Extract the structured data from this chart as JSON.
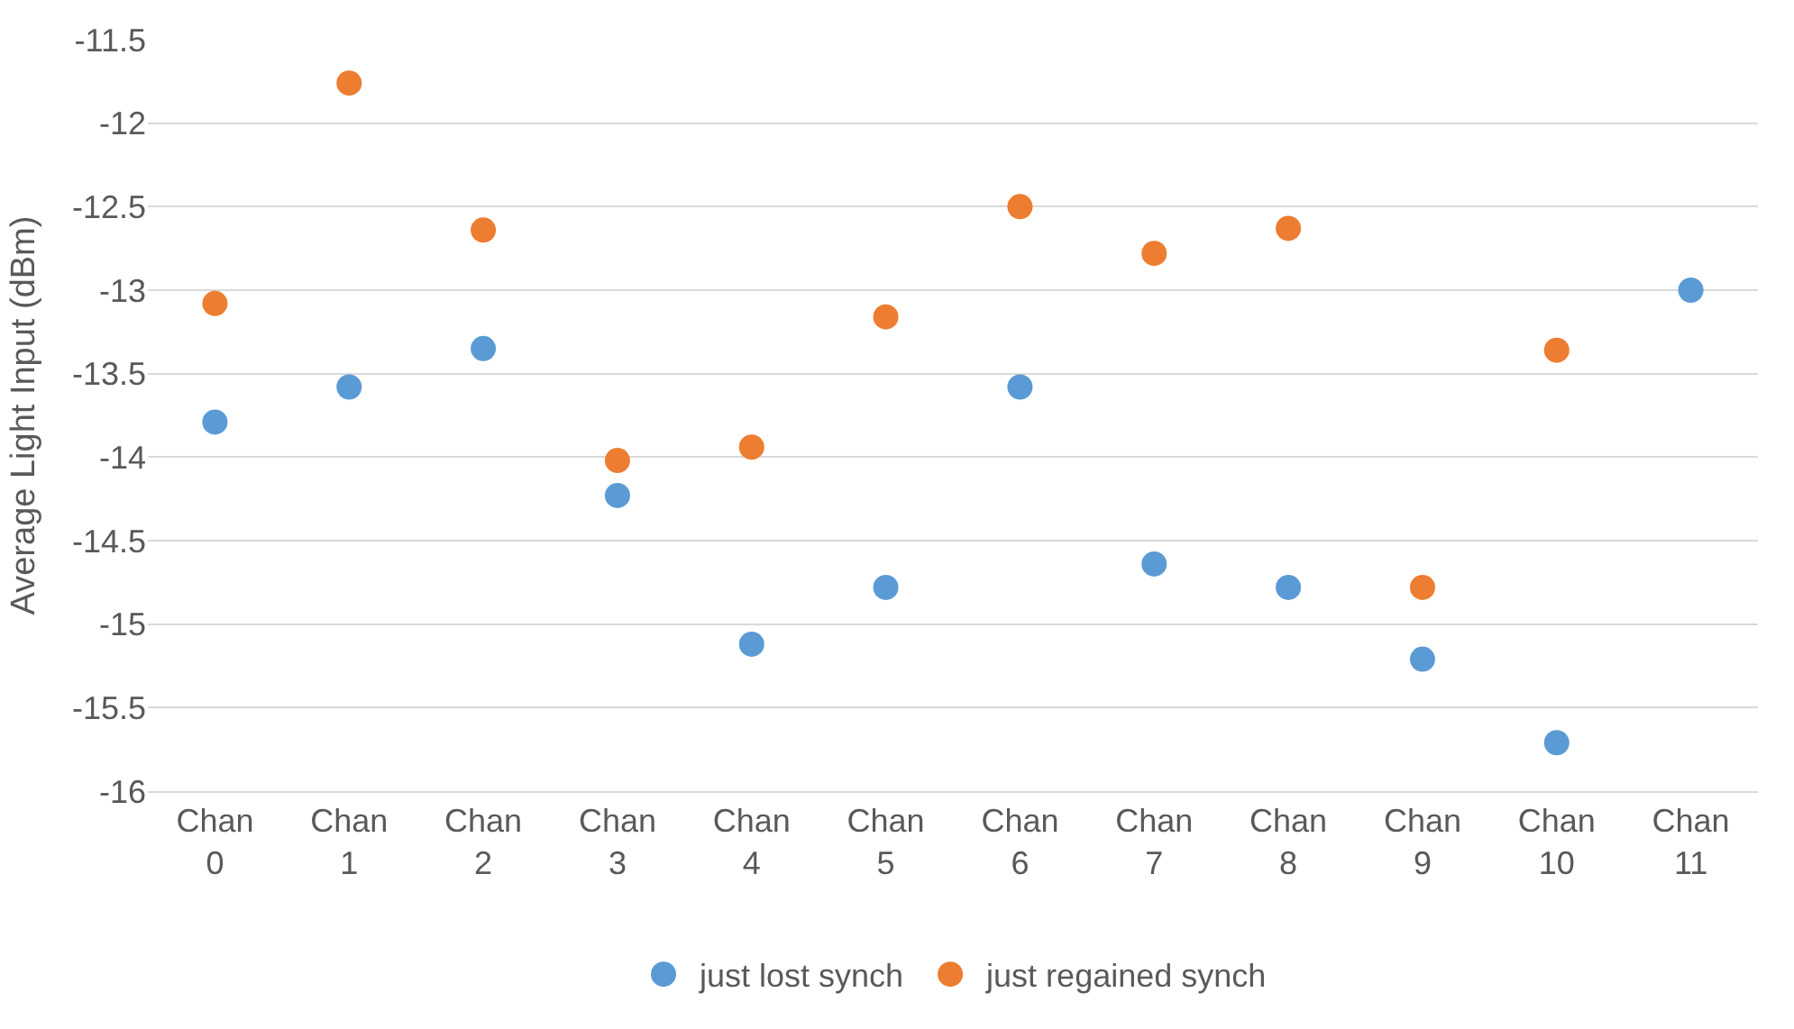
{
  "chart_data": {
    "type": "scatter",
    "ylabel": "Average Light Input (dBm)",
    "categories": [
      "Chan 0",
      "Chan 1",
      "Chan 2",
      "Chan 3",
      "Chan 4",
      "Chan 5",
      "Chan 6",
      "Chan 7",
      "Chan 8",
      "Chan 9",
      "Chan 10",
      "Chan 11"
    ],
    "series": [
      {
        "name": "just lost synch",
        "color": "#5b9bd5",
        "values": [
          -13.79,
          -13.58,
          -13.35,
          -14.23,
          -15.12,
          -14.78,
          -13.58,
          -14.64,
          -14.78,
          -15.21,
          -15.71,
          -13.0
        ]
      },
      {
        "name": "just regained synch",
        "color": "#ed7d31",
        "values": [
          -13.08,
          -11.76,
          -12.64,
          -14.02,
          -13.94,
          -13.16,
          -12.5,
          -12.78,
          -12.63,
          -14.78,
          -13.36,
          null
        ]
      }
    ],
    "ylim": [
      -16,
      -11.5
    ],
    "yticks": [
      -16,
      -15.5,
      -15,
      -14.5,
      -14,
      -13.5,
      -13,
      -12.5,
      -12,
      -11.5
    ],
    "grid": "y",
    "legend": "bottom",
    "marker": "circle"
  }
}
